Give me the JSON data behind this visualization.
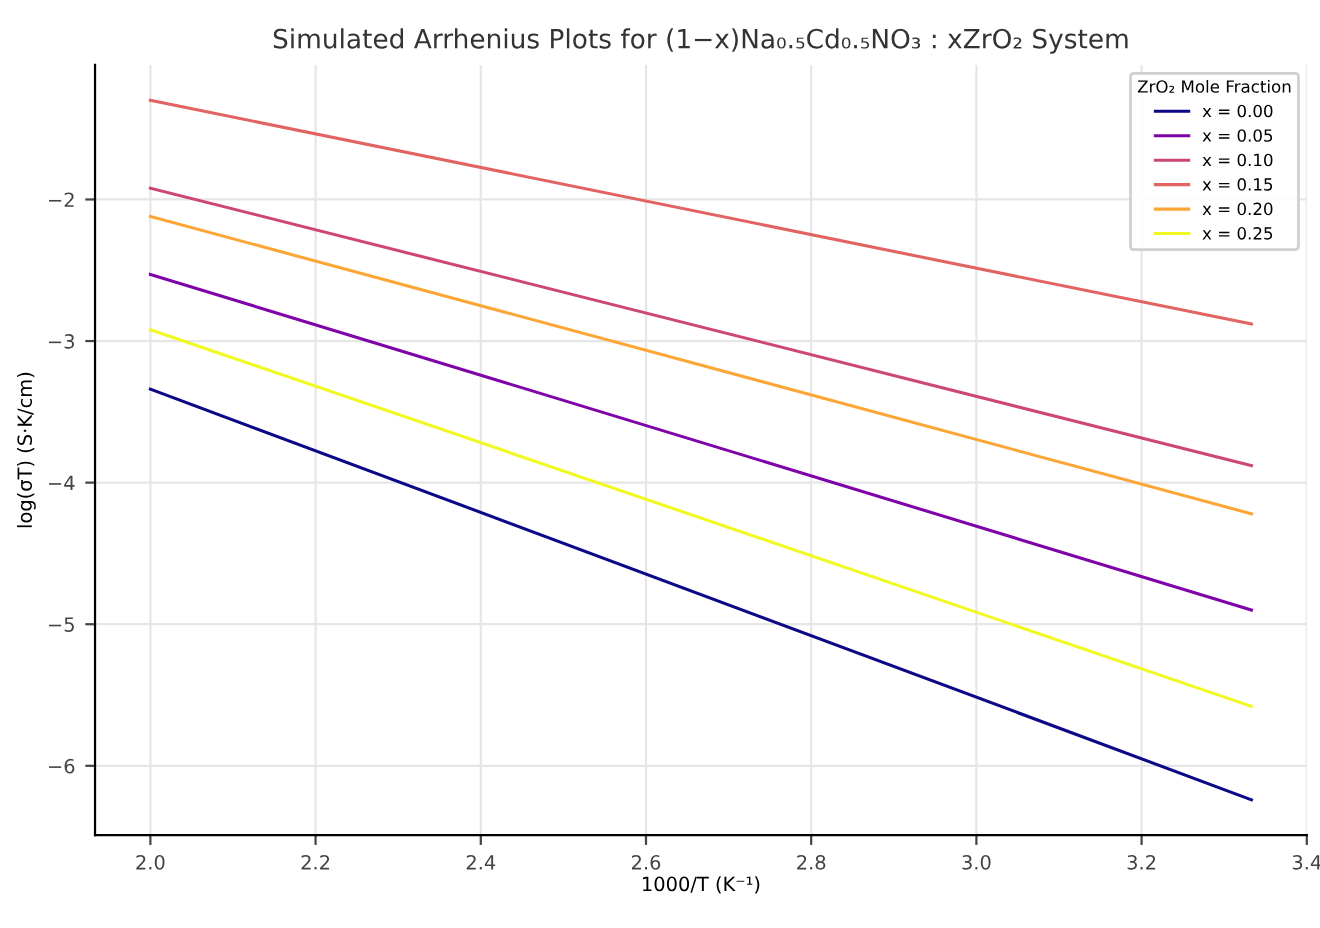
{
  "chart_data": {
    "type": "line",
    "title": "Simulated Arrhenius Plots for (1−x)Na₀.₅Cd₀.₅NO₃ : xZrO₂ System",
    "xlabel": "1000/T (K⁻¹)",
    "ylabel": "log(σT) (S·K/cm)",
    "legend_title": "ZrO₂ Mole Fraction",
    "x": [
      2.0,
      3.333
    ],
    "series": [
      {
        "name": "x = 0.00",
        "color": "#0d0887",
        "values": [
          -3.34,
          -6.24
        ]
      },
      {
        "name": "x = 0.05",
        "color": "#7e03a8",
        "values": [
          -2.53,
          -4.9
        ]
      },
      {
        "name": "x = 0.10",
        "color": "#cc4778",
        "values": [
          -1.92,
          -3.88
        ]
      },
      {
        "name": "x = 0.15",
        "color": "#e16462",
        "values": [
          -1.3,
          -2.88
        ]
      },
      {
        "name": "x = 0.20",
        "color": "#fca636",
        "values": [
          -2.12,
          -4.22
        ]
      },
      {
        "name": "x = 0.25",
        "color": "#f0f921",
        "values": [
          -2.92,
          -5.58
        ]
      }
    ],
    "xlim": [
      1.933,
      3.4
    ],
    "ylim": [
      -6.49,
      -1.05
    ],
    "xticks": [
      {
        "value": 2.0,
        "label": "2.0"
      },
      2.2,
      2.4,
      2.6,
      2.8,
      {
        "value": 3.0,
        "label": "3.0"
      },
      3.2,
      3.4
    ],
    "yticks": [
      -6,
      -5,
      -4,
      -3,
      -2
    ],
    "grid": true,
    "legend": "top right",
    "marker": "none",
    "line_style": "solid"
  }
}
